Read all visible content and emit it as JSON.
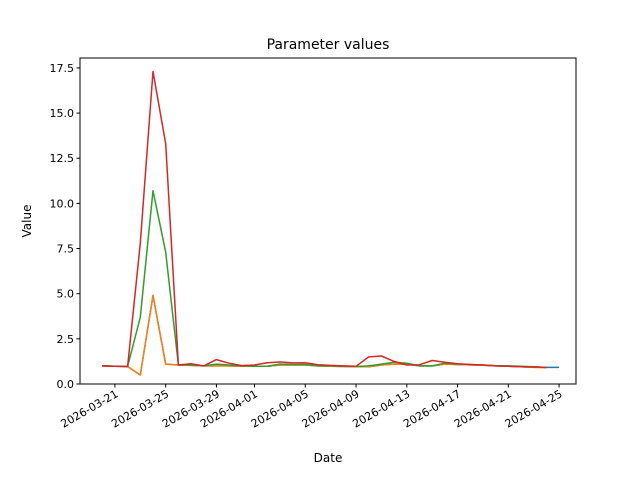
{
  "chart_data": {
    "type": "line",
    "title": "Parameter values",
    "xlabel": "Date",
    "ylabel": "Value",
    "xlim": [
      "2026-03-18T06:00",
      "2026-04-26T08:00"
    ],
    "ylim": [
      0,
      18.05
    ],
    "grid": false,
    "x_ticks": [
      "2026-03-21",
      "2026-03-25",
      "2026-03-29",
      "2026-04-01",
      "2026-04-05",
      "2026-04-09",
      "2026-04-13",
      "2026-04-17",
      "2026-04-21",
      "2026-04-25"
    ],
    "y_ticks": [
      "0.0",
      "2.5",
      "5.0",
      "7.5",
      "10.0",
      "12.5",
      "15.0",
      "17.5"
    ],
    "x": [
      "2026-03-20",
      "2026-03-21",
      "2026-03-22",
      "2026-03-23",
      "2026-03-24",
      "2026-03-25",
      "2026-03-26",
      "2026-03-27",
      "2026-03-28",
      "2026-03-29",
      "2026-03-30",
      "2026-03-31",
      "2026-04-01",
      "2026-04-02",
      "2026-04-03",
      "2026-04-04",
      "2026-04-05",
      "2026-04-06",
      "2026-04-07",
      "2026-04-08",
      "2026-04-09",
      "2026-04-10",
      "2026-04-11",
      "2026-04-12",
      "2026-04-13",
      "2026-04-14",
      "2026-04-15",
      "2026-04-16",
      "2026-04-17",
      "2026-04-18",
      "2026-04-19",
      "2026-04-20",
      "2026-04-21",
      "2026-04-22",
      "2026-04-23",
      "2026-04-24",
      "2026-04-25"
    ],
    "series": [
      {
        "color": "#1f77b4",
        "values": [
          1.0,
          0.98,
          0.97,
          0.5,
          4.9,
          1.1,
          1.05,
          1.03,
          1.0,
          1.0,
          1.0,
          0.98,
          0.98,
          0.98,
          1.05,
          1.05,
          1.05,
          1.0,
          0.98,
          0.97,
          0.96,
          0.95,
          1.05,
          1.1,
          1.1,
          1.0,
          1.0,
          1.1,
          1.08,
          1.06,
          1.04,
          1.0,
          0.98,
          0.95,
          0.93,
          0.92,
          0.92
        ]
      },
      {
        "color": "#ff7f0e",
        "values": [
          1.0,
          0.98,
          0.97,
          0.5,
          4.9,
          1.1,
          1.05,
          1.03,
          1.0,
          1.0,
          1.0,
          0.98,
          0.98,
          0.98,
          1.05,
          1.05,
          1.05,
          1.0,
          0.98,
          0.97,
          0.96,
          0.95,
          1.05,
          1.1,
          1.1,
          1.0,
          1.0,
          1.1,
          1.08,
          1.06,
          1.04,
          1.0,
          0.98,
          0.95,
          0.92,
          0.9,
          null
        ]
      },
      {
        "color": "#2ca02c",
        "values": [
          1.0,
          0.98,
          0.97,
          3.7,
          10.7,
          7.3,
          1.05,
          1.05,
          1.0,
          1.1,
          1.05,
          1.0,
          0.98,
          0.98,
          1.1,
          1.08,
          1.08,
          1.0,
          1.0,
          0.98,
          0.97,
          1.0,
          1.1,
          1.2,
          1.15,
          1.0,
          1.0,
          1.15,
          1.1,
          1.08,
          1.05,
          1.02,
          1.0,
          0.98,
          0.96,
          0.92,
          null
        ]
      },
      {
        "color": "#d62728",
        "values": [
          1.0,
          0.98,
          0.97,
          7.8,
          17.3,
          13.3,
          1.05,
          1.12,
          1.0,
          1.35,
          1.15,
          1.02,
          1.05,
          1.18,
          1.22,
          1.17,
          1.18,
          1.07,
          1.03,
          1.0,
          0.98,
          1.5,
          1.55,
          1.25,
          1.05,
          1.07,
          1.3,
          1.2,
          1.12,
          1.08,
          1.05,
          1.0,
          0.98,
          0.96,
          0.94,
          0.92,
          null
        ]
      }
    ]
  }
}
